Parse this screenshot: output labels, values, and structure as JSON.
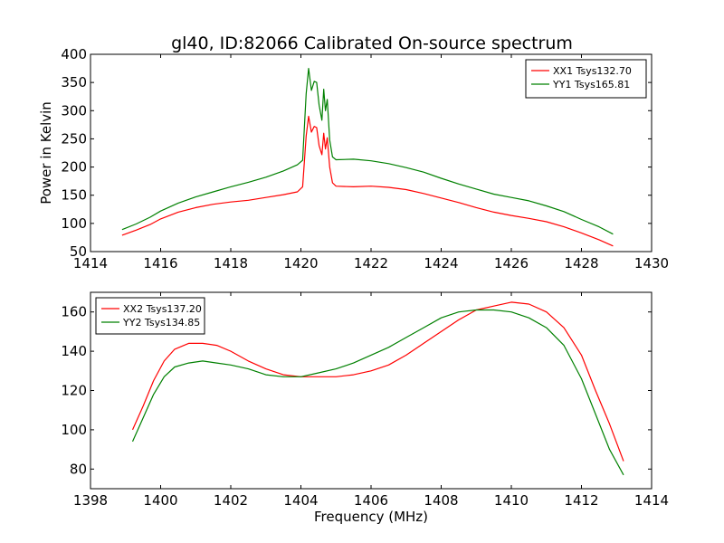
{
  "figure": {
    "title": "gl40, ID:82066 Calibrated On-source spectrum"
  },
  "chart_data": [
    {
      "type": "line",
      "xlabel": "",
      "ylabel": "Power in Kelvin",
      "xlim": [
        1414,
        1430
      ],
      "ylim": [
        50,
        400
      ],
      "xticks": [
        1414,
        1416,
        1418,
        1420,
        1422,
        1424,
        1426,
        1428,
        1430
      ],
      "yticks": [
        50,
        100,
        150,
        200,
        250,
        300,
        350,
        400
      ],
      "legend_position": "top-right",
      "grid": false,
      "series": [
        {
          "name": "XX1 Tsys132.70",
          "color": "#ff0000",
          "points": [
            [
              1414.9,
              79
            ],
            [
              1415.3,
              88
            ],
            [
              1415.7,
              98
            ],
            [
              1416.0,
              108
            ],
            [
              1416.5,
              120
            ],
            [
              1417.0,
              128
            ],
            [
              1417.5,
              134
            ],
            [
              1418.0,
              138
            ],
            [
              1418.5,
              141
            ],
            [
              1419.0,
              146
            ],
            [
              1419.5,
              151
            ],
            [
              1419.9,
              156
            ],
            [
              1420.05,
              165
            ],
            [
              1420.15,
              255
            ],
            [
              1420.22,
              290
            ],
            [
              1420.3,
              262
            ],
            [
              1420.38,
              272
            ],
            [
              1420.45,
              270
            ],
            [
              1420.52,
              238
            ],
            [
              1420.6,
              222
            ],
            [
              1420.65,
              260
            ],
            [
              1420.7,
              232
            ],
            [
              1420.75,
              252
            ],
            [
              1420.82,
              200
            ],
            [
              1420.9,
              172
            ],
            [
              1421.0,
              166
            ],
            [
              1421.5,
              165
            ],
            [
              1422.0,
              166
            ],
            [
              1422.5,
              164
            ],
            [
              1423.0,
              160
            ],
            [
              1423.5,
              153
            ],
            [
              1424.0,
              145
            ],
            [
              1424.5,
              137
            ],
            [
              1425.0,
              128
            ],
            [
              1425.5,
              120
            ],
            [
              1426.0,
              114
            ],
            [
              1426.5,
              109
            ],
            [
              1427.0,
              103
            ],
            [
              1427.5,
              94
            ],
            [
              1428.0,
              83
            ],
            [
              1428.5,
              71
            ],
            [
              1428.9,
              60
            ]
          ]
        },
        {
          "name": "YY1 Tsys165.81",
          "color": "#008000",
          "points": [
            [
              1414.9,
              89
            ],
            [
              1415.3,
              99
            ],
            [
              1415.7,
              111
            ],
            [
              1416.0,
              122
            ],
            [
              1416.5,
              136
            ],
            [
              1417.0,
              147
            ],
            [
              1417.5,
              156
            ],
            [
              1418.0,
              165
            ],
            [
              1418.5,
              173
            ],
            [
              1419.0,
              182
            ],
            [
              1419.5,
              193
            ],
            [
              1419.9,
              204
            ],
            [
              1420.05,
              212
            ],
            [
              1420.15,
              330
            ],
            [
              1420.22,
              375
            ],
            [
              1420.3,
              336
            ],
            [
              1420.38,
              352
            ],
            [
              1420.45,
              350
            ],
            [
              1420.52,
              310
            ],
            [
              1420.6,
              283
            ],
            [
              1420.65,
              338
            ],
            [
              1420.7,
              300
            ],
            [
              1420.75,
              320
            ],
            [
              1420.82,
              248
            ],
            [
              1420.9,
              218
            ],
            [
              1421.0,
              213
            ],
            [
              1421.5,
              214
            ],
            [
              1422.0,
              211
            ],
            [
              1422.5,
              206
            ],
            [
              1423.0,
              199
            ],
            [
              1423.5,
              191
            ],
            [
              1424.0,
              180
            ],
            [
              1424.5,
              170
            ],
            [
              1425.0,
              161
            ],
            [
              1425.5,
              152
            ],
            [
              1426.0,
              146
            ],
            [
              1426.5,
              140
            ],
            [
              1427.0,
              131
            ],
            [
              1427.5,
              121
            ],
            [
              1428.0,
              107
            ],
            [
              1428.5,
              94
            ],
            [
              1428.9,
              81
            ]
          ]
        }
      ]
    },
    {
      "type": "line",
      "xlabel": "Frequency (MHz)",
      "ylabel": "",
      "xlim": [
        1398,
        1414
      ],
      "ylim": [
        70,
        170
      ],
      "xticks": [
        1398,
        1400,
        1402,
        1404,
        1406,
        1408,
        1410,
        1412,
        1414
      ],
      "yticks": [
        80,
        100,
        120,
        140,
        160
      ],
      "legend_position": "top-left",
      "grid": false,
      "series": [
        {
          "name": "XX2 Tsys137.20",
          "color": "#ff0000",
          "points": [
            [
              1399.2,
              100
            ],
            [
              1399.5,
              112
            ],
            [
              1399.8,
              125
            ],
            [
              1400.1,
              135
            ],
            [
              1400.4,
              141
            ],
            [
              1400.8,
              144
            ],
            [
              1401.2,
              144
            ],
            [
              1401.6,
              143
            ],
            [
              1402.0,
              140
            ],
            [
              1402.5,
              135
            ],
            [
              1403.0,
              131
            ],
            [
              1403.5,
              128
            ],
            [
              1404.0,
              127
            ],
            [
              1404.5,
              127
            ],
            [
              1405.0,
              127
            ],
            [
              1405.5,
              128
            ],
            [
              1406.0,
              130
            ],
            [
              1406.5,
              133
            ],
            [
              1407.0,
              138
            ],
            [
              1407.5,
              144
            ],
            [
              1408.0,
              150
            ],
            [
              1408.5,
              156
            ],
            [
              1409.0,
              161
            ],
            [
              1409.5,
              163
            ],
            [
              1410.0,
              165
            ],
            [
              1410.5,
              164
            ],
            [
              1411.0,
              160
            ],
            [
              1411.5,
              152
            ],
            [
              1412.0,
              138
            ],
            [
              1412.4,
              120
            ],
            [
              1412.8,
              103
            ],
            [
              1413.2,
              84
            ]
          ]
        },
        {
          "name": "YY2 Tsys134.85",
          "color": "#008000",
          "points": [
            [
              1399.2,
              94
            ],
            [
              1399.5,
              106
            ],
            [
              1399.8,
              118
            ],
            [
              1400.1,
              127
            ],
            [
              1400.4,
              132
            ],
            [
              1400.8,
              134
            ],
            [
              1401.2,
              135
            ],
            [
              1401.6,
              134
            ],
            [
              1402.0,
              133
            ],
            [
              1402.5,
              131
            ],
            [
              1403.0,
              128
            ],
            [
              1403.5,
              127
            ],
            [
              1404.0,
              127
            ],
            [
              1404.5,
              129
            ],
            [
              1405.0,
              131
            ],
            [
              1405.5,
              134
            ],
            [
              1406.0,
              138
            ],
            [
              1406.5,
              142
            ],
            [
              1407.0,
              147
            ],
            [
              1407.5,
              152
            ],
            [
              1408.0,
              157
            ],
            [
              1408.5,
              160
            ],
            [
              1409.0,
              161
            ],
            [
              1409.5,
              161
            ],
            [
              1410.0,
              160
            ],
            [
              1410.5,
              157
            ],
            [
              1411.0,
              152
            ],
            [
              1411.5,
              143
            ],
            [
              1412.0,
              126
            ],
            [
              1412.4,
              108
            ],
            [
              1412.8,
              90
            ],
            [
              1413.2,
              77
            ]
          ]
        }
      ]
    }
  ]
}
